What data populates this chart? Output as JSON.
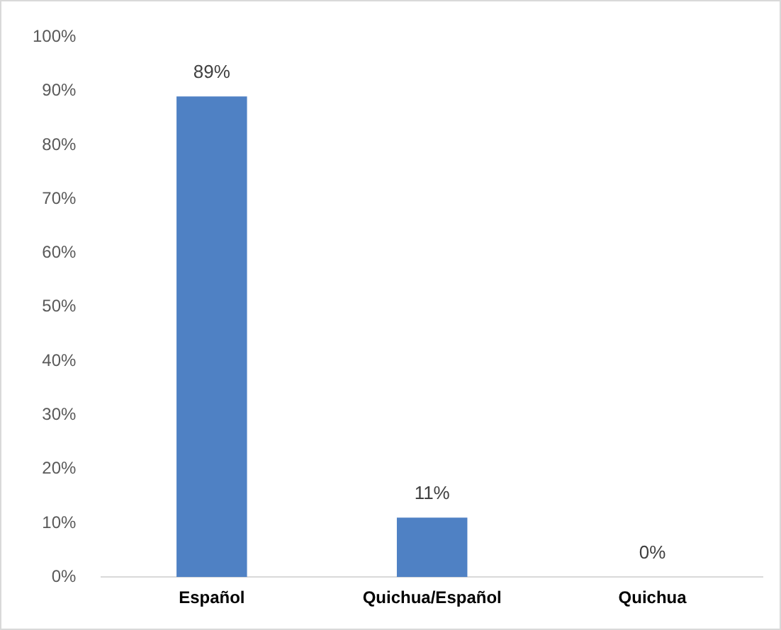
{
  "chart_data": {
    "type": "bar",
    "categories": [
      "Español",
      "Quichua/Español",
      "Quichua"
    ],
    "values": [
      89,
      11,
      0
    ],
    "color": "#4f81c4",
    "value_labels": [
      "89%",
      "11%",
      "0%"
    ],
    "ylim": [
      0,
      100
    ],
    "yticks": [
      {
        "value": 0,
        "label": "0%"
      },
      {
        "value": 10,
        "label": "10%"
      },
      {
        "value": 20,
        "label": "20%"
      },
      {
        "value": 30,
        "label": "30%"
      },
      {
        "value": 40,
        "label": "40%"
      },
      {
        "value": 50,
        "label": "50%"
      },
      {
        "value": 60,
        "label": "60%"
      },
      {
        "value": 70,
        "label": "70%"
      },
      {
        "value": 80,
        "label": "80%"
      },
      {
        "value": 90,
        "label": "90%"
      },
      {
        "value": 100,
        "label": "100%"
      }
    ],
    "grid": false,
    "legend": false
  }
}
